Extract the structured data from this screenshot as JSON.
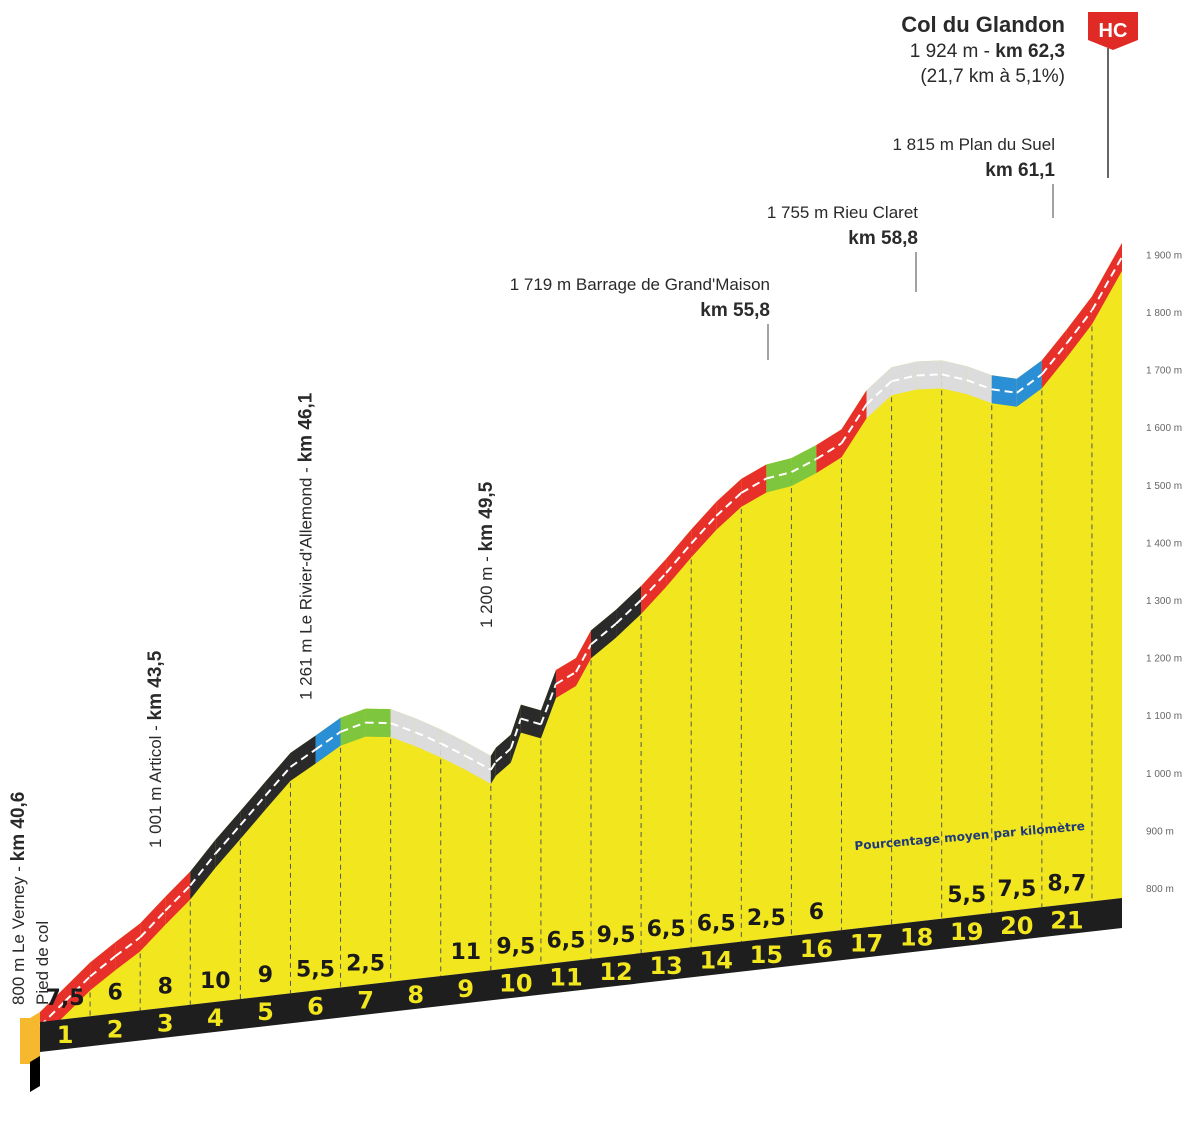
{
  "chart_data": {
    "type": "area",
    "title": "Col du Glandon",
    "summit": {
      "name": "Col du Glandon",
      "altitude_text": "1 924 m - ",
      "km_text": "km 62,3",
      "climb_text": "(21,7 km à 5,1%)",
      "category": "HC"
    },
    "y_ticks": [
      "800 m",
      "900 m",
      "1 000 m",
      "1 100 m",
      "1 200 m",
      "1 300 m",
      "1 400 m",
      "1 500 m",
      "1 600 m",
      "1 700 m",
      "1 800 m",
      "1 900 m"
    ],
    "y_tick_values": [
      800,
      900,
      1000,
      1100,
      1200,
      1300,
      1400,
      1500,
      1600,
      1700,
      1800,
      1900
    ],
    "x_km_labels": [
      "1",
      "2",
      "3",
      "4",
      "5",
      "6",
      "7",
      "8",
      "9",
      "10",
      "11",
      "12",
      "13",
      "14",
      "15",
      "16",
      "17",
      "18",
      "19",
      "20",
      "21"
    ],
    "gradient_labels": [
      "7,5",
      "6",
      "8",
      "10",
      "9",
      "5,5",
      "2,5",
      "",
      "11",
      "9,5",
      "6,5",
      "9,5",
      "6,5",
      "6,5",
      "2,5",
      "6",
      "",
      "",
      "5,5",
      "7,5",
      "8,7"
    ],
    "profile": {
      "x": [
        0,
        0.5,
        1,
        1.5,
        2,
        2.5,
        3,
        3.5,
        4,
        4.5,
        5,
        5.5,
        6,
        6.5,
        7,
        7.5,
        8,
        8.5,
        9,
        9.1,
        9.4,
        9.6,
        10,
        10.3,
        10.7,
        11,
        11.5,
        12,
        12.5,
        13,
        13.5,
        14,
        14.5,
        15,
        15.5,
        16,
        16.5,
        17,
        17.5,
        18,
        18.5,
        19,
        19.5,
        20,
        20.5,
        21,
        21.6
      ],
      "elevation": [
        800,
        838,
        876,
        906,
        934,
        975,
        1014,
        1064,
        1109,
        1155,
        1200,
        1225,
        1251,
        1262,
        1256,
        1235,
        1211,
        1184,
        1155,
        1168,
        1188,
        1238,
        1224,
        1291,
        1308,
        1353,
        1384,
        1420,
        1462,
        1508,
        1551,
        1586,
        1606,
        1612,
        1630,
        1652,
        1715,
        1750,
        1755,
        1752,
        1737,
        1716,
        1705,
        1732,
        1781,
        1833,
        1920
      ],
      "segments_color": [
        "red",
        "red",
        "red",
        "red",
        "red",
        "red",
        "dark",
        "dark",
        "dark",
        "dark",
        "dark",
        "blue",
        "green",
        "green",
        "flat",
        "flat",
        "flat",
        "flat",
        "dark",
        "dark",
        "dark",
        "dark",
        "dark",
        "red",
        "red",
        "dark",
        "dark",
        "red",
        "red",
        "red",
        "red",
        "red",
        "green",
        "green",
        "red",
        "red",
        "flat",
        "flat",
        "flat",
        "flat",
        "flat",
        "blue",
        "blue",
        "red",
        "red",
        "red"
      ]
    },
    "annotations": [
      {
        "id": "start",
        "line1": "800 m Le Verney - ",
        "line1b": "km 40,6",
        "line2": "Pied de col",
        "km": 0
      },
      {
        "id": "articol",
        "line1": "1 001 m Articol - ",
        "line1b": "km 43,5",
        "km": 2.5
      },
      {
        "id": "rivier",
        "line1": "1 261 m Le Rivier-d'Allemond - ",
        "line1b": "km 46,1",
        "km": 5.5
      },
      {
        "id": "km495",
        "line1": "1 200 m - ",
        "line1b": "km 49,5",
        "km": 9.1
      },
      {
        "id": "barrage",
        "line1": "1 719 m Barrage de Grand'Maison",
        "line1b": "km 55,8",
        "km": 15.2
      },
      {
        "id": "rieu",
        "line1": "1 755 m Rieu Claret",
        "line1b": "km 58,8",
        "km": 18.2
      },
      {
        "id": "suel",
        "line1": "1 815 m Plan du Suel",
        "line1b": "km 61,1",
        "km": 20.5
      }
    ],
    "legend_text": "Pourcentage moyen par kilomètre",
    "colors": {
      "fill": "#f2e61e",
      "red": "#e8302a",
      "dark": "#2a2a2a",
      "blue": "#2a8fd4",
      "green": "#7ec63d",
      "flat": "#dcdcdc",
      "base": "#1e1e1e",
      "start_block": "#f5b82e"
    }
  }
}
